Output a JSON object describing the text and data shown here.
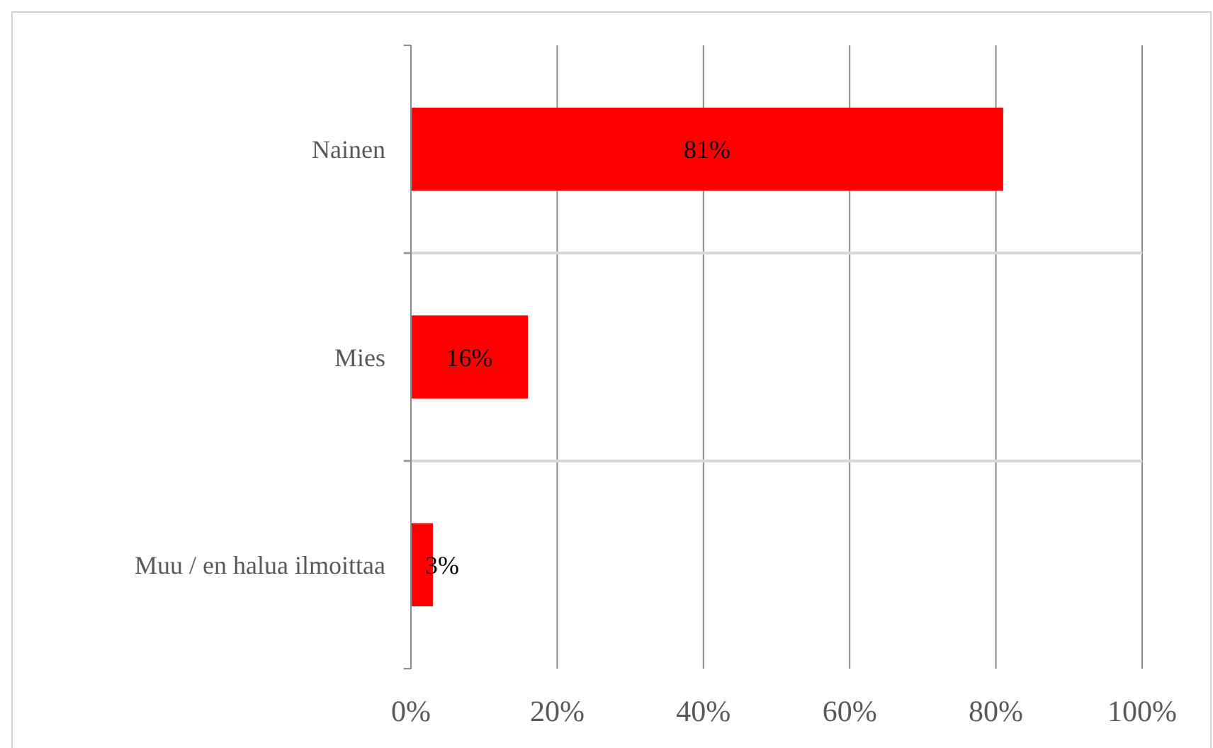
{
  "chart_data": {
    "type": "bar",
    "orientation": "horizontal",
    "categories": [
      "Nainen",
      "Mies",
      "Muu / en halua ilmoittaa"
    ],
    "values": [
      81,
      16,
      3
    ],
    "value_labels": [
      "81%",
      "16%",
      "3%"
    ],
    "color": "#ff0000",
    "xlim": [
      0,
      100
    ],
    "xticks": [
      {
        "value": 0,
        "label": "0%"
      },
      {
        "value": 20,
        "label": "20%"
      },
      {
        "value": 40,
        "label": "40%"
      },
      {
        "value": 60,
        "label": "60%"
      },
      {
        "value": 80,
        "label": "80%"
      },
      {
        "value": 100,
        "label": "100%"
      }
    ],
    "grid": "x"
  }
}
